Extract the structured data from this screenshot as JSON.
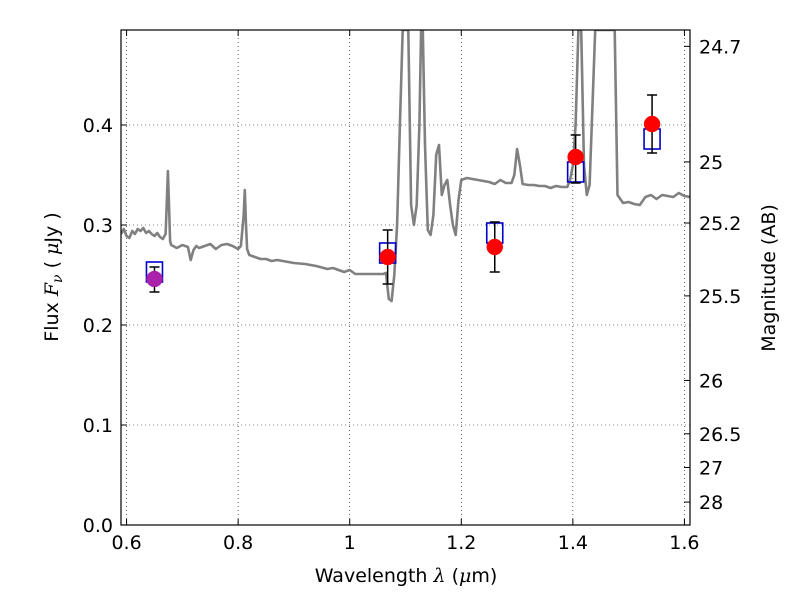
{
  "chart_data": {
    "type": "scatter",
    "title": "",
    "xlabel": "Wavelength  λ (μm)",
    "xlabel_parts": {
      "main": "Wavelength  ",
      "lambda": "λ",
      "open": " (",
      "mu": "μ",
      "unit": "m)"
    },
    "ylabel": "Flux  Fν  ( μJy )",
    "ylabel_parts": {
      "main": "Flux  ",
      "F": "F",
      "nu": "ν",
      "open": "  ( ",
      "mu": "μ",
      "unit": "Jy )"
    },
    "y2label": "Magnitude (AB)",
    "xlim": [
      0.59,
      1.61
    ],
    "ylim": [
      0.0,
      0.495
    ],
    "grid": true,
    "grid_style": "dotted",
    "xticks": [
      {
        "value": 0.6,
        "label": "0.6"
      },
      {
        "value": 0.8,
        "label": "0.8"
      },
      {
        "value": 1.0,
        "label": "1"
      },
      {
        "value": 1.2,
        "label": "1.2"
      },
      {
        "value": 1.4,
        "label": "1.4"
      },
      {
        "value": 1.6,
        "label": "1.6"
      }
    ],
    "yticks": [
      {
        "value": 0.0,
        "label": "0.0"
      },
      {
        "value": 0.1,
        "label": "0.1"
      },
      {
        "value": 0.2,
        "label": "0.2"
      },
      {
        "value": 0.3,
        "label": "0.3"
      },
      {
        "value": 0.4,
        "label": "0.4"
      }
    ],
    "y2ticks": [
      {
        "mag": 24.7,
        "label": "24.7"
      },
      {
        "mag": 25.0,
        "label": "25"
      },
      {
        "mag": 25.2,
        "label": "25.2"
      },
      {
        "mag": 25.5,
        "label": "25.5"
      },
      {
        "mag": 26.0,
        "label": "26"
      },
      {
        "mag": 26.5,
        "label": "26.5"
      },
      {
        "mag": 27.0,
        "label": "27"
      },
      {
        "mag": 28.0,
        "label": "28"
      }
    ],
    "series": [
      {
        "kind": "spectrum_line",
        "color": "#808080",
        "x": [
          0.59,
          0.595,
          0.6,
          0.605,
          0.61,
          0.615,
          0.62,
          0.625,
          0.63,
          0.635,
          0.64,
          0.645,
          0.65,
          0.655,
          0.66,
          0.665,
          0.67,
          0.672,
          0.674,
          0.676,
          0.678,
          0.68,
          0.69,
          0.7,
          0.71,
          0.715,
          0.72,
          0.725,
          0.73,
          0.74,
          0.75,
          0.76,
          0.77,
          0.78,
          0.79,
          0.8,
          0.805,
          0.81,
          0.812,
          0.814,
          0.816,
          0.82,
          0.83,
          0.84,
          0.85,
          0.86,
          0.87,
          0.88,
          0.9,
          0.92,
          0.94,
          0.96,
          0.97,
          0.98,
          0.99,
          1.0,
          1.01,
          1.02,
          1.03,
          1.04,
          1.05,
          1.06,
          1.065,
          1.07,
          1.075,
          1.08,
          1.085,
          1.09,
          1.095,
          1.1,
          1.105,
          1.11,
          1.115,
          1.12,
          1.125,
          1.128,
          1.131,
          1.135,
          1.14,
          1.145,
          1.15,
          1.155,
          1.16,
          1.165,
          1.17,
          1.175,
          1.18,
          1.185,
          1.19,
          1.195,
          1.2,
          1.21,
          1.22,
          1.23,
          1.24,
          1.25,
          1.26,
          1.27,
          1.28,
          1.29,
          1.295,
          1.3,
          1.305,
          1.31,
          1.32,
          1.33,
          1.34,
          1.35,
          1.36,
          1.37,
          1.38,
          1.39,
          1.395,
          1.4,
          1.405,
          1.41,
          1.415,
          1.42,
          1.425,
          1.43,
          1.44,
          1.45,
          1.46,
          1.47,
          1.475,
          1.48,
          1.49,
          1.5,
          1.51,
          1.52,
          1.53,
          1.54,
          1.55,
          1.56,
          1.57,
          1.58,
          1.59,
          1.6,
          1.61
        ],
        "y": [
          0.291,
          0.296,
          0.289,
          0.287,
          0.294,
          0.291,
          0.296,
          0.294,
          0.297,
          0.292,
          0.294,
          0.291,
          0.289,
          0.292,
          0.288,
          0.286,
          0.291,
          0.32,
          0.354,
          0.32,
          0.284,
          0.28,
          0.277,
          0.28,
          0.278,
          0.265,
          0.275,
          0.279,
          0.277,
          0.279,
          0.281,
          0.276,
          0.28,
          0.281,
          0.279,
          0.276,
          0.279,
          0.31,
          0.335,
          0.3,
          0.276,
          0.27,
          0.268,
          0.266,
          0.266,
          0.264,
          0.265,
          0.264,
          0.262,
          0.261,
          0.259,
          0.256,
          0.257,
          0.255,
          0.253,
          0.255,
          0.251,
          0.251,
          0.251,
          0.251,
          0.251,
          0.251,
          0.252,
          0.226,
          0.224,
          0.25,
          0.3,
          0.4,
          0.495,
          0.495,
          0.495,
          0.32,
          0.3,
          0.32,
          0.4,
          0.495,
          0.495,
          0.38,
          0.295,
          0.29,
          0.31,
          0.37,
          0.38,
          0.33,
          0.34,
          0.345,
          0.32,
          0.3,
          0.29,
          0.325,
          0.345,
          0.347,
          0.346,
          0.345,
          0.344,
          0.343,
          0.341,
          0.345,
          0.342,
          0.342,
          0.35,
          0.376,
          0.36,
          0.341,
          0.34,
          0.34,
          0.339,
          0.339,
          0.337,
          0.339,
          0.338,
          0.338,
          0.345,
          0.36,
          0.4,
          0.495,
          0.495,
          0.36,
          0.33,
          0.34,
          0.495,
          0.495,
          0.495,
          0.495,
          0.495,
          0.33,
          0.322,
          0.323,
          0.321,
          0.32,
          0.328,
          0.33,
          0.326,
          0.33,
          0.329,
          0.328,
          0.332,
          0.329,
          0.328
        ]
      },
      {
        "kind": "model_squares",
        "color": "#0000cc",
        "x": [
          0.65,
          1.068,
          1.26,
          1.405,
          1.542
        ],
        "y": [
          0.253,
          0.272,
          0.292,
          0.353,
          0.386
        ]
      },
      {
        "kind": "observed_points",
        "color": "#ff0000",
        "x": [
          0.65,
          1.068,
          1.26,
          1.405,
          1.542
        ],
        "y": [
          0.246,
          0.268,
          0.278,
          0.368,
          0.401
        ],
        "yerr_low": [
          0.233,
          0.241,
          0.253,
          0.342,
          0.372
        ],
        "yerr_high": [
          0.258,
          0.295,
          0.303,
          0.39,
          0.43
        ],
        "first_point_color": "#aa22aa"
      }
    ]
  }
}
